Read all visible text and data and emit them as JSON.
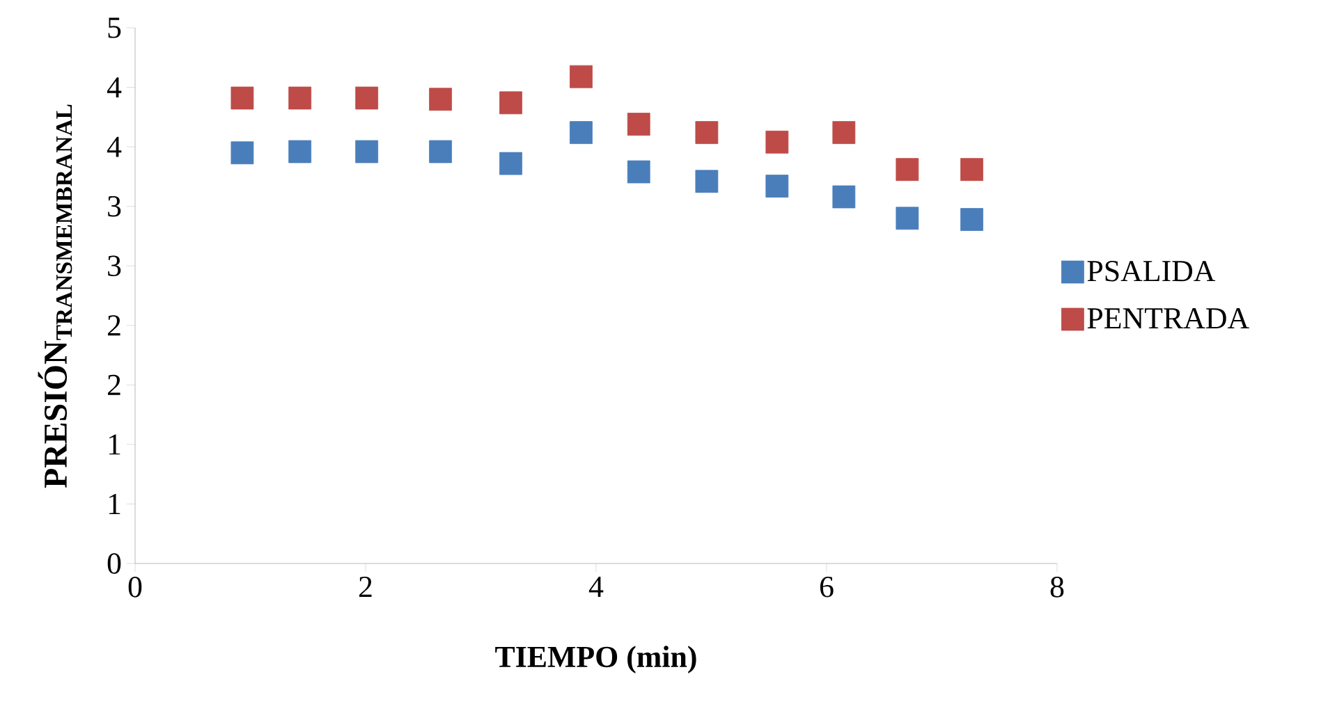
{
  "chart_data": {
    "type": "scatter",
    "xlabel": "TIEMPO (min)",
    "ylabel": "\\textbf{PRESIÓN}_{\\textbf{TRANSMEMBRANAL}}",
    "x": [
      0.93,
      1.43,
      2.01,
      2.65,
      3.26,
      3.87,
      4.37,
      4.96,
      5.57,
      6.15,
      6.7,
      7.26
    ],
    "series": [
      {
        "name": "PSALIDA",
        "color": "#4a7ebb",
        "values": [
          3.45,
          3.46,
          3.46,
          3.46,
          3.36,
          3.62,
          3.29,
          3.21,
          3.17,
          3.08,
          2.9,
          2.89
        ]
      },
      {
        "name": "PENTRADA",
        "color": "#be4b48",
        "values": [
          3.91,
          3.91,
          3.91,
          3.9,
          3.87,
          4.09,
          3.69,
          3.62,
          3.54,
          3.62,
          3.31,
          3.31
        ]
      }
    ],
    "xlim": [
      0,
      8
    ],
    "xticks": [
      0,
      2,
      4,
      6,
      8
    ],
    "ylim": [
      0,
      4.5
    ],
    "yticks": [
      0,
      {
        "value": 0.5,
        "label": "1"
      },
      1,
      {
        "value": 1.5,
        "label": "2"
      },
      2,
      {
        "value": 2.5,
        "label": "3"
      },
      3,
      {
        "value": 3.5,
        "label": "4"
      },
      4,
      {
        "value": 4.5,
        "label": "5"
      }
    ],
    "marker": "square",
    "legend": "right",
    "grid": false
  }
}
